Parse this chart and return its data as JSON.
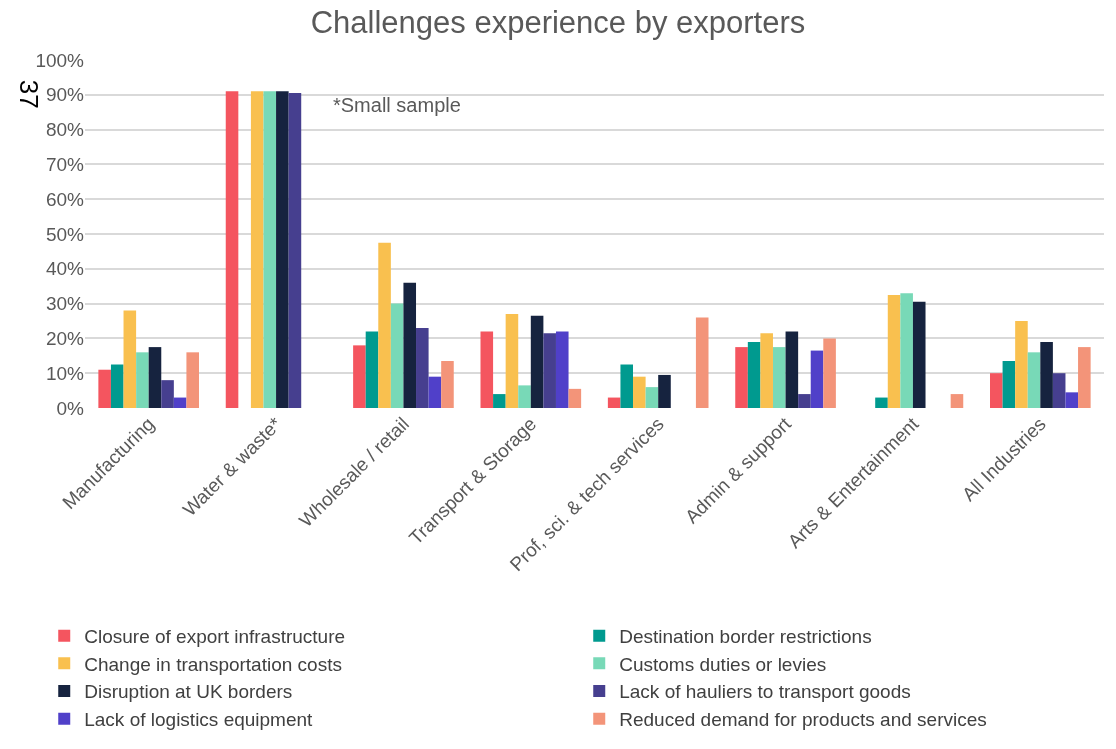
{
  "chart_data": {
    "type": "bar",
    "title": "Challenges experience by exporters",
    "categories": [
      "Manufacturing",
      "Water & waste*",
      "Wholesale / retail",
      "Transport & Storage",
      "Prof, sci. & tech services",
      "Admin & support",
      "Arts & Entertainment",
      "All Industries"
    ],
    "series": [
      {
        "name": "Closure of export infrastructure",
        "color": "#f4555f",
        "values": [
          11,
          91,
          18,
          22,
          3,
          17.5,
          0,
          10
        ]
      },
      {
        "name": "Destination border restrictions",
        "color": "#009a8f",
        "values": [
          12.5,
          0,
          22,
          4,
          12.5,
          19,
          3,
          13.5
        ]
      },
      {
        "name": "Change in transportation costs",
        "color": "#f9c04f",
        "values": [
          28,
          91,
          47.5,
          27,
          9,
          21.5,
          32.5,
          25
        ]
      },
      {
        "name": "Customs duties or levies",
        "color": "#78d9b7",
        "values": [
          16,
          91,
          30,
          6.5,
          6,
          17.5,
          33,
          16
        ]
      },
      {
        "name": "Disruption at UK borders",
        "color": "#16233f",
        "values": [
          17.5,
          91,
          36,
          26.5,
          9.5,
          22,
          30.5,
          19
        ]
      },
      {
        "name": "Lack of hauliers to transport goods",
        "color": "#463f8f",
        "values": [
          8,
          90.5,
          23,
          21.5,
          0,
          4,
          0,
          10
        ]
      },
      {
        "name": "Lack of logistics equipment",
        "color": "#5040c9",
        "values": [
          3,
          0,
          9,
          22,
          0,
          16.5,
          0,
          4.5
        ]
      },
      {
        "name": "Reduced demand for products and services",
        "color": "#f39479",
        "values": [
          16,
          0,
          13.5,
          5.5,
          26,
          20,
          4,
          17.5
        ]
      }
    ],
    "ylim": [
      0,
      100
    ],
    "yticks": [
      {
        "value": 0,
        "label": "0%"
      },
      {
        "value": 10,
        "label": "10%"
      },
      {
        "value": 20,
        "label": "20%"
      },
      {
        "value": 30,
        "label": "30%"
      },
      {
        "value": 40,
        "label": "40%"
      },
      {
        "value": 50,
        "label": "50%"
      },
      {
        "value": 60,
        "label": "60%"
      },
      {
        "value": 70,
        "label": "70%"
      },
      {
        "value": 80,
        "label": "80%"
      },
      {
        "value": 90,
        "label": "90%"
      },
      {
        "value": 100,
        "label": "100%"
      }
    ],
    "grid": "y",
    "legend": "bottom",
    "annotations": [
      {
        "text": "*Small sample",
        "x": "Water & waste*",
        "y": 87
      },
      "37"
    ]
  }
}
